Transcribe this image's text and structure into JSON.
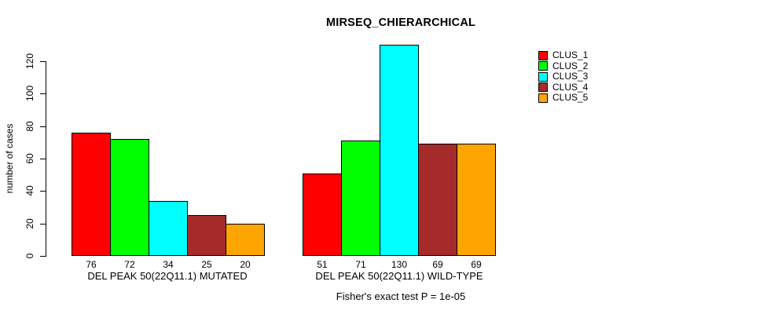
{
  "chart_data": {
    "type": "bar",
    "title": "MIRSEQ_CHIERARCHICAL",
    "ylabel": "number of cases",
    "xlabel": "",
    "annotation": "Fisher's exact test P = 1e-05",
    "categories": [
      "DEL PEAK 50(22Q11.1) MUTATED",
      "DEL PEAK 50(22Q11.1) WILD-TYPE"
    ],
    "series": [
      {
        "name": "CLUS_1",
        "color": "#FF0000",
        "values": [
          76,
          51
        ]
      },
      {
        "name": "CLUS_2",
        "color": "#00FF00",
        "values": [
          72,
          71
        ]
      },
      {
        "name": "CLUS_3",
        "color": "#00FFFF",
        "values": [
          34,
          130
        ]
      },
      {
        "name": "CLUS_4",
        "color": "#A52A2A",
        "values": [
          25,
          69
        ]
      },
      {
        "name": "CLUS_5",
        "color": "#FFA500",
        "values": [
          20,
          69
        ]
      }
    ],
    "yticks": [
      0,
      20,
      40,
      60,
      80,
      100,
      120
    ],
    "ylim": [
      0,
      134
    ],
    "grid": false,
    "bar_value_labels_shown": true,
    "bar_border_color": "#000000",
    "background": "#FFFFFF",
    "legend": {
      "position": "right",
      "entries": [
        {
          "label": "CLUS_1",
          "color": "#FF0000"
        },
        {
          "label": "CLUS_2",
          "color": "#00FF00"
        },
        {
          "label": "CLUS_3",
          "color": "#00FFFF"
        },
        {
          "label": "CLUS_4",
          "color": "#A52A2A"
        },
        {
          "label": "CLUS_5",
          "color": "#FFA500"
        }
      ]
    }
  }
}
